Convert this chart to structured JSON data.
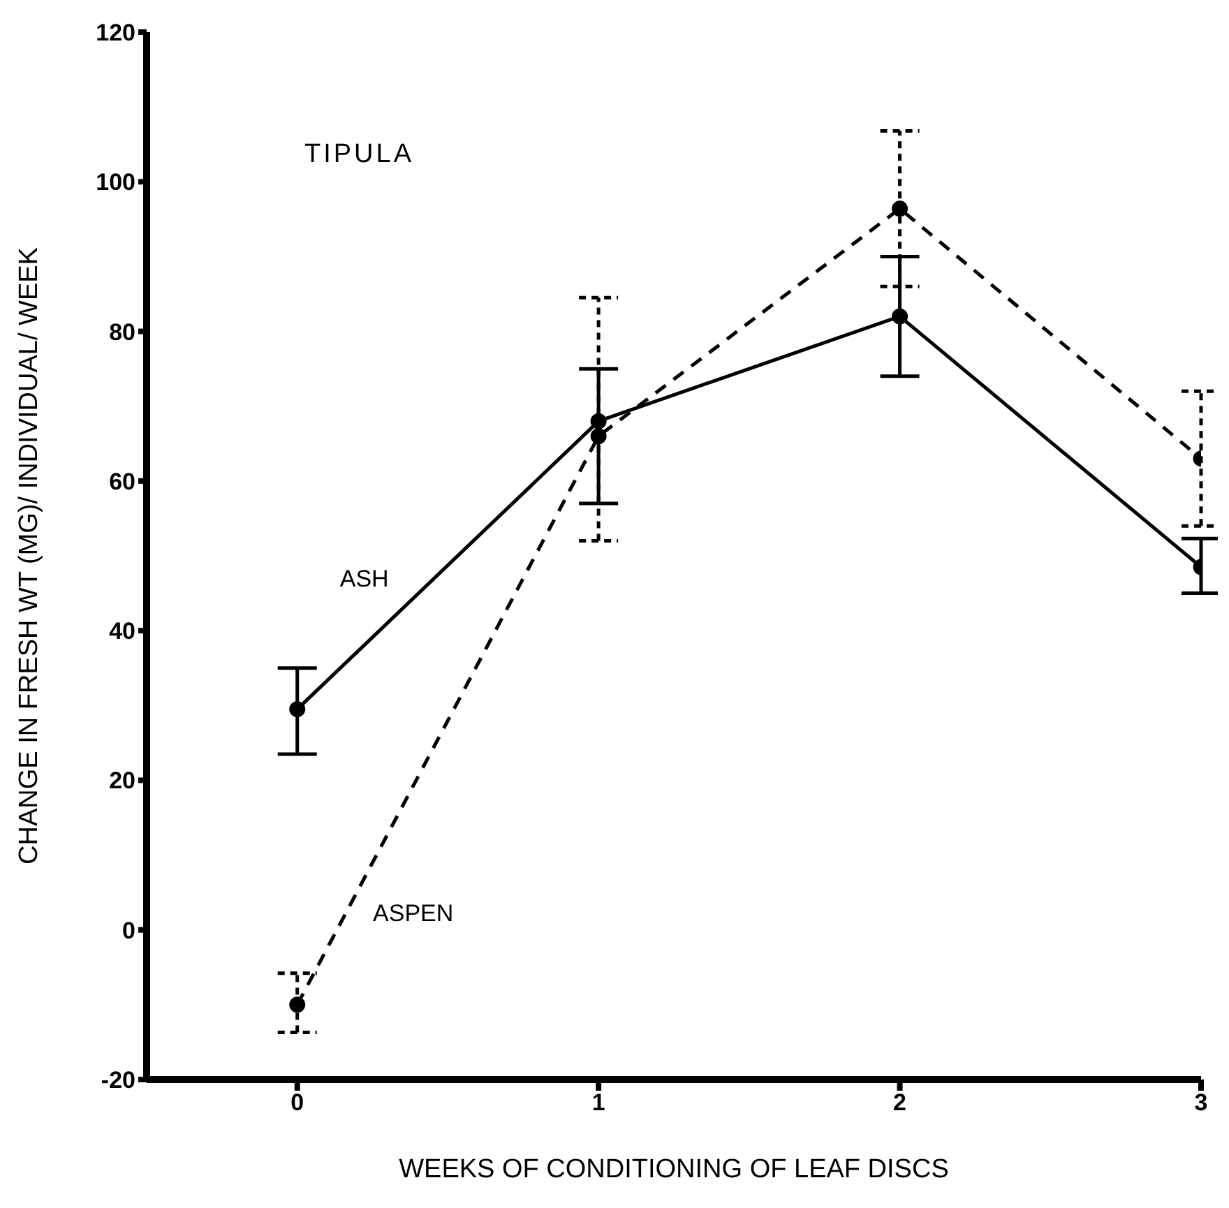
{
  "chart_data": {
    "type": "line",
    "xlabel": "WEEKS OF CONDITIONING OF LEAF  DISCS",
    "ylabel": "CHANGE IN FRESH WT (MG)/ INDIVIDUAL/ WEEK",
    "annotations": [
      "TIPULA"
    ],
    "x": [
      0,
      1,
      2,
      3
    ],
    "series": [
      {
        "name": "ASH",
        "color": "#000000",
        "line_style": "solid",
        "values": [
          29.5,
          68,
          82,
          48.5
        ],
        "errors": [
          [
            23.5,
            35
          ],
          [
            57,
            75
          ],
          [
            74,
            90
          ],
          [
            45,
            52.3
          ]
        ]
      },
      {
        "name": "ASPEN",
        "color": "#000000",
        "line_style": "dashed",
        "values": [
          -10,
          66,
          96.4,
          63
        ],
        "errors": [
          [
            -13.7,
            -5.8
          ],
          [
            52,
            84.5
          ],
          10.4,
          [
            54,
            72
          ]
        ]
      }
    ],
    "xlim": [
      -0.5,
      3
    ],
    "xticks": [
      0,
      1,
      2,
      3
    ],
    "ylim": [
      -20,
      120
    ],
    "yticks": [
      -20,
      0,
      20,
      40,
      60,
      80,
      100,
      120
    ],
    "grid": false,
    "legend": false,
    "marker": "circle"
  }
}
